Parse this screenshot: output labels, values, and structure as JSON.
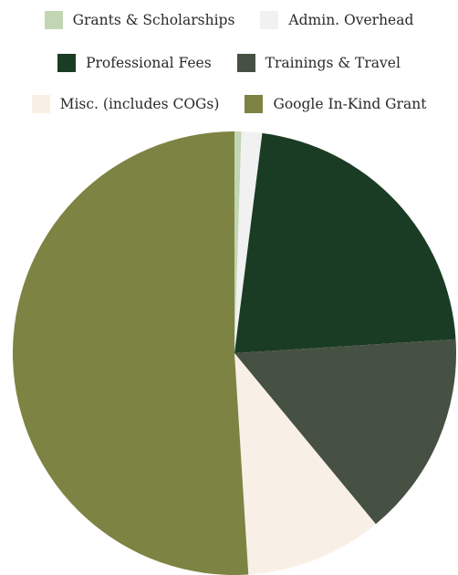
{
  "chart_data": {
    "type": "pie",
    "title": "",
    "legend_position": "top",
    "slices": [
      {
        "label": "Grants & Scholarships",
        "value": 0.5,
        "color": "#c3d6b4"
      },
      {
        "label": "Admin. Overhead",
        "value": 1.5,
        "color": "#f1f1f1"
      },
      {
        "label": "Professional Fees",
        "value": 22,
        "color": "#1a3c24"
      },
      {
        "label": "Trainings & Travel",
        "value": 15,
        "color": "#475143"
      },
      {
        "label": "Misc. (includes COGs)",
        "value": 10,
        "color": "#f8f0e6"
      },
      {
        "label": "Google In-Kind Grant",
        "value": 51,
        "color": "#7d8443"
      }
    ]
  }
}
